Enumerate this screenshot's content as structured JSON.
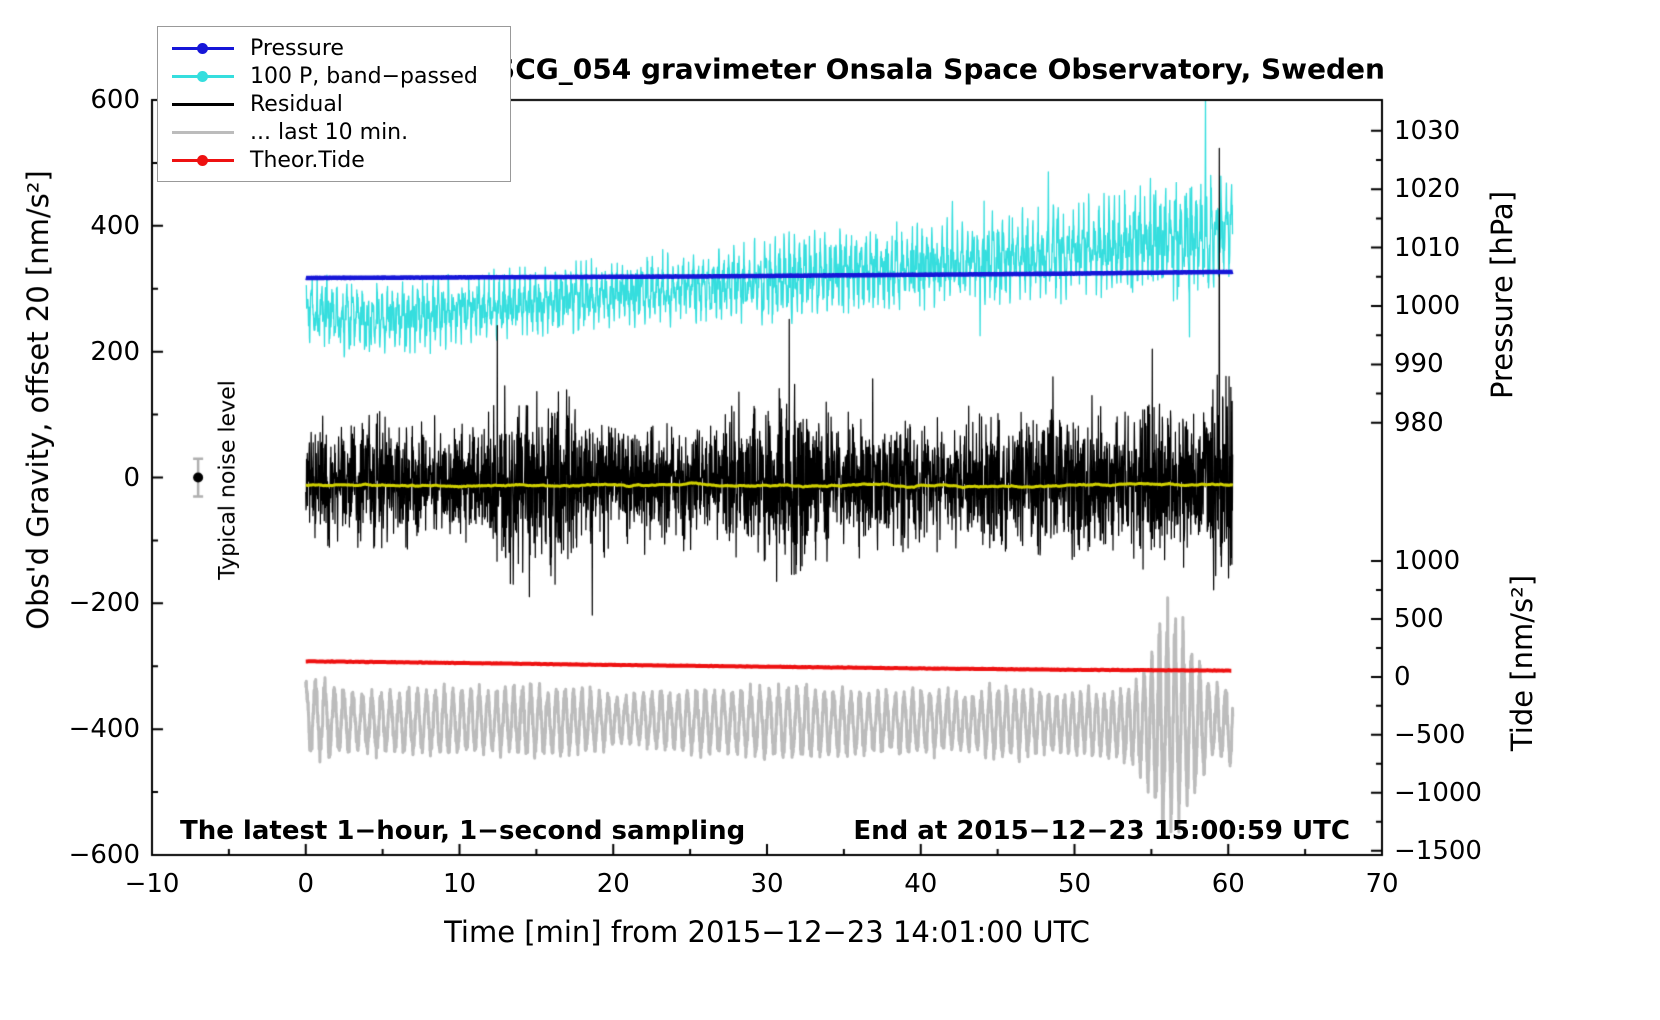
{
  "chart_data": {
    "type": "line",
    "title": "SCG_054 gravimeter Onsala Space Observatory, Sweden",
    "xlabel": "Time [min] from 2015−12−23 14:01:00 UTC",
    "ylabel_left": "Obs'd Gravity, offset 20 [nm/s²]",
    "ylabel_pressure": "Pressure [hPa]",
    "ylabel_tide": "Tide [nm/s²]",
    "annotations": {
      "sampling_note": "The latest 1−hour, 1−second sampling",
      "end_time_note": "End at 2015−12−23 15:00:59 UTC",
      "noise_level": {
        "label": "Typical noise level",
        "x_min": -7,
        "value": 0,
        "error": 30
      }
    },
    "xlim": [
      -10,
      70
    ],
    "ylim_left": [
      -600,
      600
    ],
    "xticks": [
      {
        "v": -10,
        "label": "−10"
      },
      {
        "v": 0,
        "label": "0"
      },
      {
        "v": 10,
        "label": "10"
      },
      {
        "v": 20,
        "label": "20"
      },
      {
        "v": 30,
        "label": "30"
      },
      {
        "v": 40,
        "label": "40"
      },
      {
        "v": 50,
        "label": "50"
      },
      {
        "v": 60,
        "label": "60"
      },
      {
        "v": 70,
        "label": "70"
      }
    ],
    "yticks_left": [
      {
        "v": 600,
        "label": "600"
      },
      {
        "v": 400,
        "label": "400"
      },
      {
        "v": 200,
        "label": "200"
      },
      {
        "v": 0,
        "label": "0"
      },
      {
        "v": -200,
        "label": "−200"
      },
      {
        "v": -400,
        "label": "−400"
      },
      {
        "v": -600,
        "label": "−600"
      }
    ],
    "pressure_ticks": [
      {
        "v": 1030,
        "label": "1030"
      },
      {
        "v": 1020,
        "label": "1020"
      },
      {
        "v": 1010,
        "label": "1010"
      },
      {
        "v": 1000,
        "label": "1000"
      },
      {
        "v": 990,
        "label": "990"
      },
      {
        "v": 980,
        "label": "980"
      }
    ],
    "tide_ticks": [
      {
        "v": 1000,
        "label": "1000"
      },
      {
        "v": 500,
        "label": "500"
      },
      {
        "v": 0,
        "label": "0"
      },
      {
        "v": -500,
        "label": "−500"
      },
      {
        "v": -1000,
        "label": "−1000"
      },
      {
        "v": -1500,
        "label": "−1500"
      }
    ],
    "axis_mapping": {
      "pressure_ref": [
        [
          980,
          87
        ],
        [
          1030,
          551
        ]
      ],
      "tide_ref": [
        [
          0,
          -316.9
        ],
        [
          1000,
          -132.6
        ]
      ]
    },
    "legend": [
      {
        "label": "Pressure",
        "color": "#1616d8",
        "marker": true
      },
      {
        "label": "100 P, band−passed",
        "color": "#35dede",
        "marker": true
      },
      {
        "label": "Residual",
        "color": "#000000",
        "marker": false
      },
      {
        "label": "... last 10 min.",
        "color": "#bcbcbc",
        "marker": false
      },
      {
        "label": "Theor.Tide",
        "color": "#ee1111",
        "marker": true
      }
    ],
    "series": [
      {
        "name": "100 P, band−passed",
        "axis": "left",
        "style": "bandpass",
        "color": "#35dede",
        "width": 1.3,
        "dt": 0.02,
        "seed": 7,
        "spike_prob": 0.004,
        "spike_mult": 2.0,
        "mean": [
          [
            0,
            272
          ],
          [
            1,
            262
          ],
          [
            2,
            256
          ],
          [
            4,
            252
          ],
          [
            6,
            257
          ],
          [
            8,
            263
          ],
          [
            10,
            268
          ],
          [
            13,
            274
          ],
          [
            16,
            281
          ],
          [
            19,
            289
          ],
          [
            22,
            296
          ],
          [
            25,
            301
          ],
          [
            28,
            307
          ],
          [
            30,
            314
          ],
          [
            33,
            322
          ],
          [
            36,
            328
          ],
          [
            39,
            334
          ],
          [
            42,
            340
          ],
          [
            45,
            346
          ],
          [
            48,
            354
          ],
          [
            51,
            362
          ],
          [
            54,
            372
          ],
          [
            57,
            381
          ],
          [
            60.3,
            389
          ]
        ],
        "amp": [
          [
            0,
            46
          ],
          [
            2,
            42
          ],
          [
            5,
            40
          ],
          [
            8,
            44
          ],
          [
            11,
            39
          ],
          [
            14,
            41
          ],
          [
            17,
            39
          ],
          [
            20,
            40
          ],
          [
            23,
            41
          ],
          [
            26,
            40
          ],
          [
            29,
            46
          ],
          [
            31,
            54
          ],
          [
            33,
            50
          ],
          [
            36,
            50
          ],
          [
            39,
            51
          ],
          [
            42,
            49
          ],
          [
            45,
            51
          ],
          [
            48,
            54
          ],
          [
            50,
            58
          ],
          [
            52,
            61
          ],
          [
            54,
            66
          ],
          [
            56,
            73
          ],
          [
            58,
            78
          ],
          [
            60.3,
            70
          ]
        ]
      },
      {
        "name": "Residual",
        "axis": "left",
        "style": "noise",
        "color": "#000000",
        "width": 1.2,
        "dt": 0.0167,
        "seed": 3,
        "spike_prob": 0.006,
        "spike_mult": 1.9,
        "mean": [
          [
            0,
            -8
          ],
          [
            60.3,
            -8
          ]
        ],
        "amp": [
          [
            0,
            46
          ],
          [
            2,
            54
          ],
          [
            4,
            62
          ],
          [
            5,
            68
          ],
          [
            6,
            56
          ],
          [
            8,
            46
          ],
          [
            10,
            50
          ],
          [
            12,
            62
          ],
          [
            13,
            78
          ],
          [
            14,
            84
          ],
          [
            15,
            70
          ],
          [
            16,
            88
          ],
          [
            17,
            72
          ],
          [
            18,
            56
          ],
          [
            20,
            50
          ],
          [
            22,
            54
          ],
          [
            24,
            50
          ],
          [
            26,
            55
          ],
          [
            28,
            60
          ],
          [
            30,
            74
          ],
          [
            31,
            84
          ],
          [
            32,
            88
          ],
          [
            33,
            70
          ],
          [
            34,
            62
          ],
          [
            36,
            60
          ],
          [
            38,
            56
          ],
          [
            40,
            62
          ],
          [
            42,
            56
          ],
          [
            44,
            60
          ],
          [
            46,
            56
          ],
          [
            48,
            60
          ],
          [
            50,
            70
          ],
          [
            52,
            62
          ],
          [
            54,
            66
          ],
          [
            56,
            70
          ],
          [
            58,
            66
          ],
          [
            59,
            86
          ],
          [
            60,
            120
          ],
          [
            60.3,
            125
          ]
        ]
      },
      {
        "name": "Residual smoothed",
        "axis": "left",
        "style": "ar",
        "color": "#cfcf00",
        "width": 3,
        "dt": 0.05,
        "seed": 5,
        "walk": 1.2,
        "mean": [
          [
            0,
            -12
          ],
          [
            60.3,
            -12
          ]
        ]
      },
      {
        "name": "... last 10 min.",
        "axis": "tide",
        "style": "osc",
        "color": "#bcbcbc",
        "width": 3,
        "dt": 0.01,
        "seed": 9,
        "period": [
          [
            0,
            0.62
          ],
          [
            15,
            0.55
          ],
          [
            30,
            0.6
          ],
          [
            45,
            0.55
          ],
          [
            55,
            0.5
          ],
          [
            60.3,
            0.58
          ]
        ],
        "mean": [
          [
            0,
            -340
          ],
          [
            2,
            -375
          ],
          [
            4,
            -390
          ],
          [
            6,
            -398
          ],
          [
            8,
            -392
          ],
          [
            10,
            -385
          ],
          [
            13,
            -378
          ],
          [
            16,
            -382
          ],
          [
            19,
            -380
          ],
          [
            21,
            -368
          ],
          [
            24,
            -374
          ],
          [
            27,
            -382
          ],
          [
            30,
            -390
          ],
          [
            33,
            -398
          ],
          [
            36,
            -394
          ],
          [
            39,
            -388
          ],
          [
            42,
            -384
          ],
          [
            45,
            -382
          ],
          [
            48,
            -394
          ],
          [
            51,
            -405
          ],
          [
            53,
            -415
          ],
          [
            55,
            -400
          ],
          [
            57,
            -390
          ],
          [
            59,
            -395
          ],
          [
            60.3,
            -430
          ]
        ],
        "amp": [
          [
            0,
            330
          ],
          [
            1,
            370
          ],
          [
            3,
            300
          ],
          [
            5,
            285
          ],
          [
            7,
            305
          ],
          [
            9,
            318
          ],
          [
            11,
            305
          ],
          [
            13,
            322
          ],
          [
            15,
            335
          ],
          [
            17,
            318
          ],
          [
            19,
            295
          ],
          [
            20,
            225
          ],
          [
            22,
            258
          ],
          [
            24,
            280
          ],
          [
            26,
            300
          ],
          [
            28,
            318
          ],
          [
            30,
            330
          ],
          [
            32,
            340
          ],
          [
            34,
            322
          ],
          [
            36,
            305
          ],
          [
            38,
            292
          ],
          [
            40,
            300
          ],
          [
            42,
            290
          ],
          [
            44,
            282
          ],
          [
            45,
            340
          ],
          [
            47,
            310
          ],
          [
            49,
            288
          ],
          [
            51,
            298
          ],
          [
            53,
            330
          ],
          [
            54,
            420
          ],
          [
            55,
            650
          ],
          [
            56,
            1050
          ],
          [
            57,
            950
          ],
          [
            58,
            560
          ],
          [
            59,
            340
          ],
          [
            60.3,
            380
          ]
        ]
      },
      {
        "name": "Pressure",
        "axis": "pressure",
        "style": "line",
        "color": "#1616d8",
        "width": 4.5,
        "dt": 0.05,
        "jitter": 0.03,
        "seed": 11,
        "points": [
          [
            0,
            1004.8
          ],
          [
            5,
            1004.85
          ],
          [
            10,
            1004.9
          ],
          [
            15,
            1004.95
          ],
          [
            20,
            1005.0
          ],
          [
            25,
            1005.05
          ],
          [
            30,
            1005.15
          ],
          [
            35,
            1005.25
          ],
          [
            40,
            1005.35
          ],
          [
            45,
            1005.45
          ],
          [
            50,
            1005.55
          ],
          [
            55,
            1005.7
          ],
          [
            60.3,
            1005.85
          ]
        ]
      },
      {
        "name": "Theor.Tide",
        "axis": "tide",
        "style": "line",
        "color": "#ee1111",
        "width": 4,
        "dt": 0.1,
        "jitter": 2,
        "seed": 13,
        "points": [
          [
            0,
            135
          ],
          [
            10,
            120
          ],
          [
            20,
            103
          ],
          [
            30,
            88
          ],
          [
            40,
            73
          ],
          [
            50,
            61
          ],
          [
            60.3,
            54
          ]
        ]
      }
    ]
  }
}
